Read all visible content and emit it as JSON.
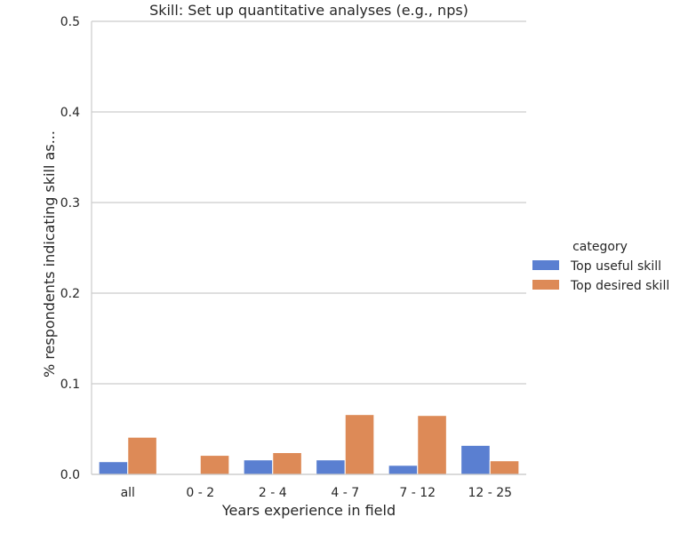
{
  "chart_data": {
    "type": "bar",
    "title": "Skill: Set up quantitative analyses (e.g., nps)",
    "xlabel": "Years experience in field",
    "ylabel": "% respondents indicating skill as...",
    "categories": [
      "all",
      "0 - 2",
      "2 - 4",
      "4 - 7",
      "7 - 12",
      "12 - 25"
    ],
    "ylim": [
      0,
      0.5
    ],
    "yticks": [
      "0.0",
      "0.1",
      "0.2",
      "0.3",
      "0.4",
      "0.5"
    ],
    "grid": true,
    "legend_title": "category",
    "legend_position": "right",
    "series": [
      {
        "name": "Top useful skill",
        "color": "#5a7fd1",
        "values": [
          0.014,
          0.0,
          0.016,
          0.016,
          0.01,
          0.032
        ]
      },
      {
        "name": "Top desired skill",
        "color": "#dd8a57",
        "values": [
          0.041,
          0.021,
          0.024,
          0.066,
          0.065,
          0.015
        ]
      }
    ]
  }
}
